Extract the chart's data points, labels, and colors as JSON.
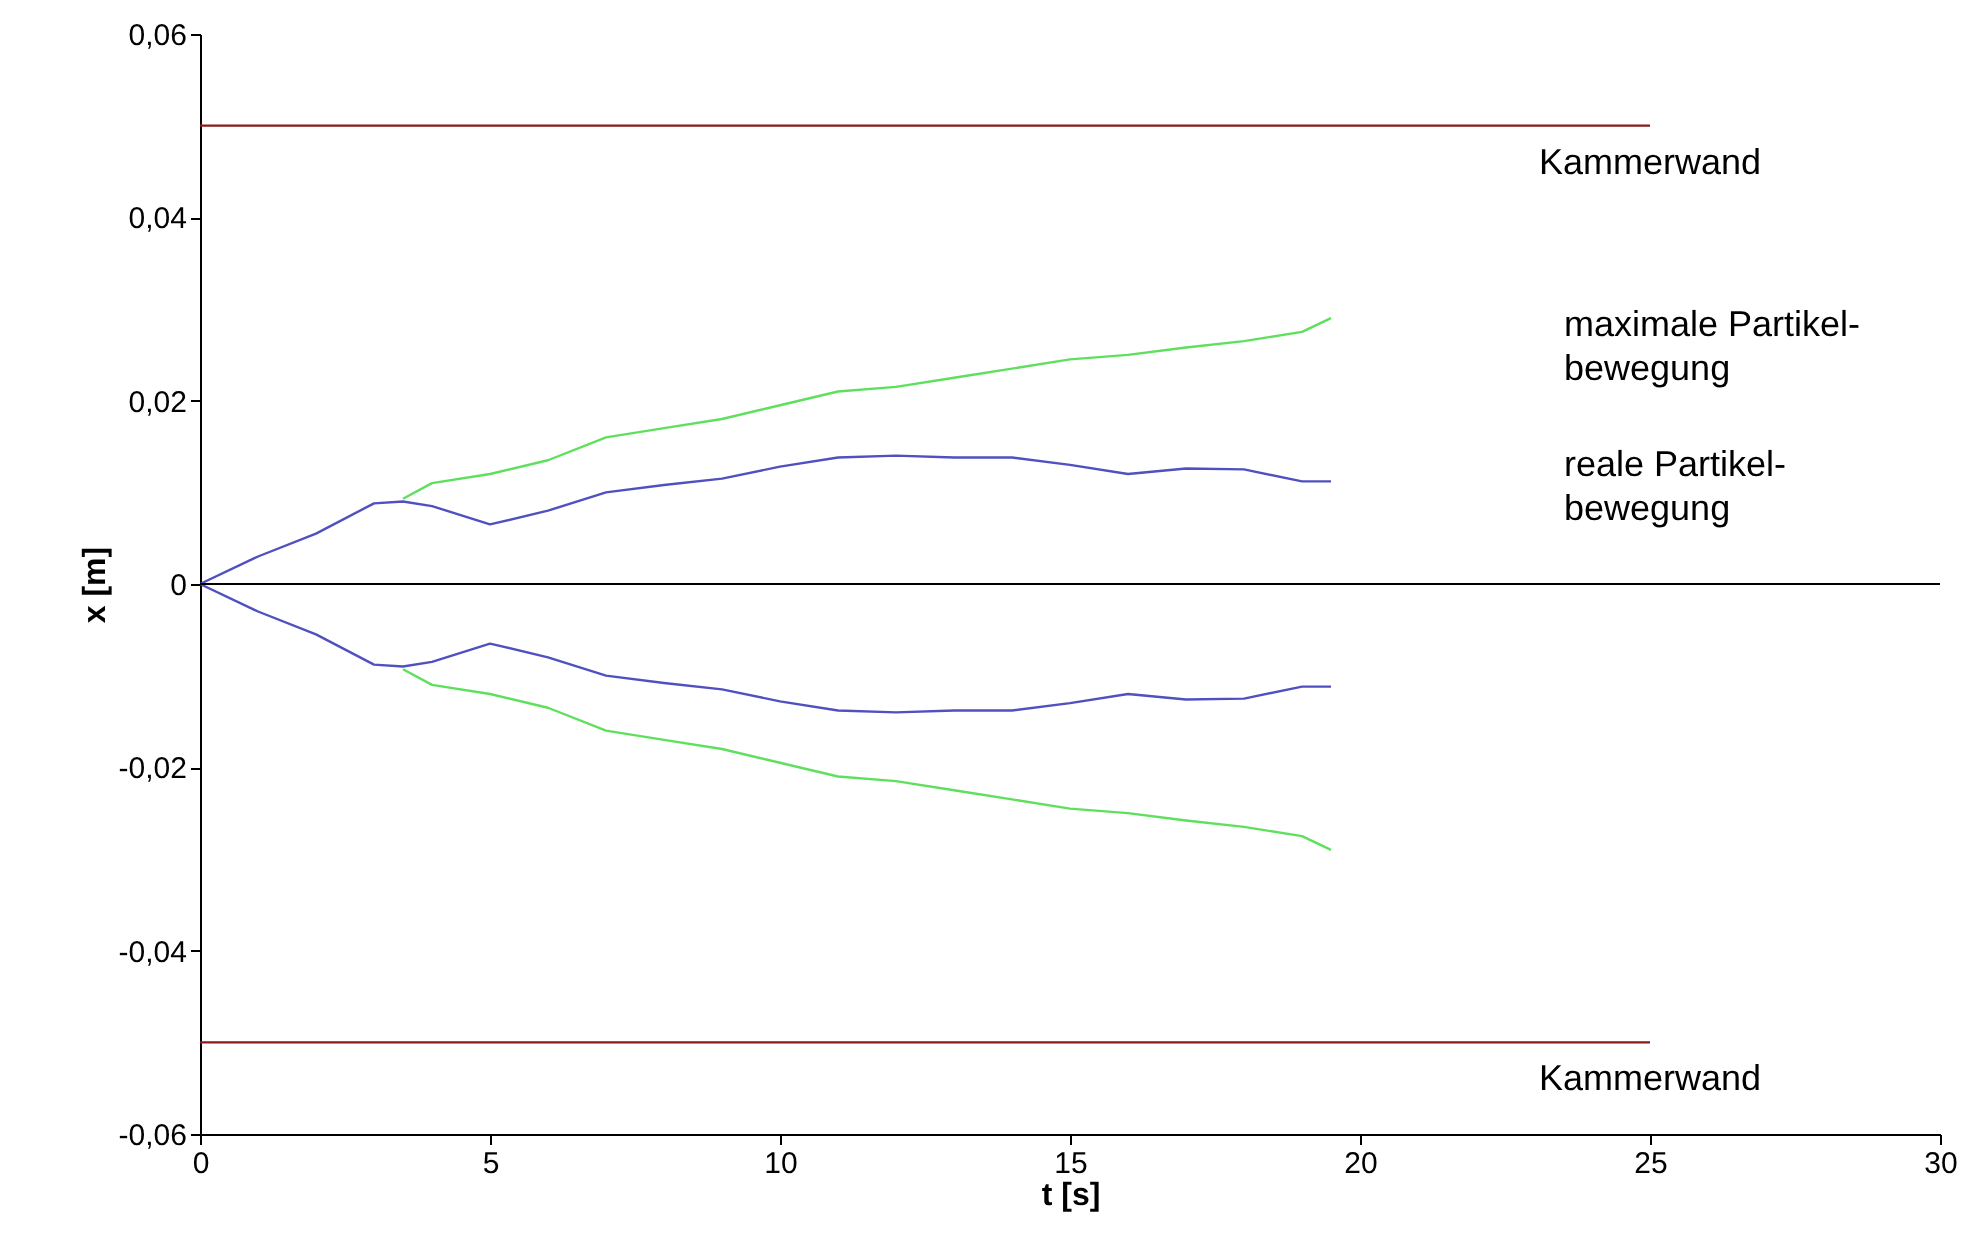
{
  "chart_data": {
    "type": "line",
    "xlabel": "t [s]",
    "ylabel": "x [m]",
    "xlim": [
      0,
      30
    ],
    "xticks": [
      0,
      5,
      10,
      15,
      20,
      25,
      30
    ],
    "ylim": [
      -0.06,
      0.06
    ],
    "yticks": [
      {
        "value": -0.06,
        "label": "-0,06"
      },
      {
        "value": -0.04,
        "label": "-0,04"
      },
      {
        "value": -0.02,
        "label": "-0,02"
      },
      0,
      {
        "value": 0.02,
        "label": "0,02"
      },
      {
        "value": 0.04,
        "label": "0,04"
      },
      {
        "value": 0.06,
        "label": "0,06"
      }
    ],
    "grid": false,
    "legend": false,
    "marker": "none",
    "line_style": "solid",
    "ref_lines": [
      {
        "axis": "y",
        "value": 0,
        "color": "#000000"
      }
    ],
    "series": [
      {
        "color": "#5ee05e",
        "x": [
          3.5,
          4,
          5,
          6,
          7,
          8,
          9,
          10,
          11,
          12,
          13,
          14,
          15,
          16,
          17,
          18,
          19,
          19.5
        ],
        "values": [
          0.0093,
          0.011,
          0.012,
          0.0135,
          0.016,
          0.017,
          0.018,
          0.0195,
          0.021,
          0.0215,
          0.0225,
          0.0235,
          0.0245,
          0.025,
          0.0258,
          0.0265,
          0.0275,
          0.029
        ]
      },
      {
        "color": "#5050c0",
        "x": [
          0,
          1,
          2,
          3,
          3.5,
          4,
          5,
          6,
          7,
          8,
          9,
          10,
          11,
          12,
          13,
          14,
          15,
          16,
          17,
          18,
          19,
          19.5
        ],
        "values": [
          0,
          0.003,
          0.0055,
          0.0088,
          0.009,
          0.0085,
          0.0065,
          0.008,
          0.01,
          0.0108,
          0.0115,
          0.0128,
          0.0138,
          0.014,
          0.0138,
          0.0138,
          0.013,
          0.012,
          0.0126,
          0.0125,
          0.0112,
          0.0112
        ]
      },
      {
        "color": "#5ee05e",
        "x": [
          3.5,
          4,
          5,
          6,
          7,
          8,
          9,
          10,
          11,
          12,
          13,
          14,
          15,
          16,
          17,
          18,
          19,
          19.5
        ],
        "values": [
          -0.0093,
          -0.011,
          -0.012,
          -0.0135,
          -0.016,
          -0.017,
          -0.018,
          -0.0195,
          -0.021,
          -0.0215,
          -0.0225,
          -0.0235,
          -0.0245,
          -0.025,
          -0.0258,
          -0.0265,
          -0.0275,
          -0.029
        ]
      },
      {
        "color": "#5050c0",
        "x": [
          0,
          1,
          2,
          3,
          3.5,
          4,
          5,
          6,
          7,
          8,
          9,
          10,
          11,
          12,
          13,
          14,
          15,
          16,
          17,
          18,
          19,
          19.5
        ],
        "values": [
          0,
          -0.003,
          -0.0055,
          -0.0088,
          -0.009,
          -0.0085,
          -0.0065,
          -0.008,
          -0.01,
          -0.0108,
          -0.0115,
          -0.0128,
          -0.0138,
          -0.014,
          -0.0138,
          -0.0138,
          -0.013,
          -0.012,
          -0.0126,
          -0.0125,
          -0.0112,
          -0.0112
        ]
      },
      {
        "name": "Kammerwand",
        "color": "#8b1a1a",
        "x": [
          0,
          25
        ],
        "values": [
          0.05,
          0.05
        ]
      },
      {
        "name": "Kammerwand",
        "color": "#8b1a1a",
        "x": [
          0,
          25
        ],
        "values": [
          -0.05,
          -0.05
        ]
      }
    ],
    "annotations": [
      "maximale Partikel-\nbewegung",
      "reale Partikel-\nbewegung"
    ]
  }
}
